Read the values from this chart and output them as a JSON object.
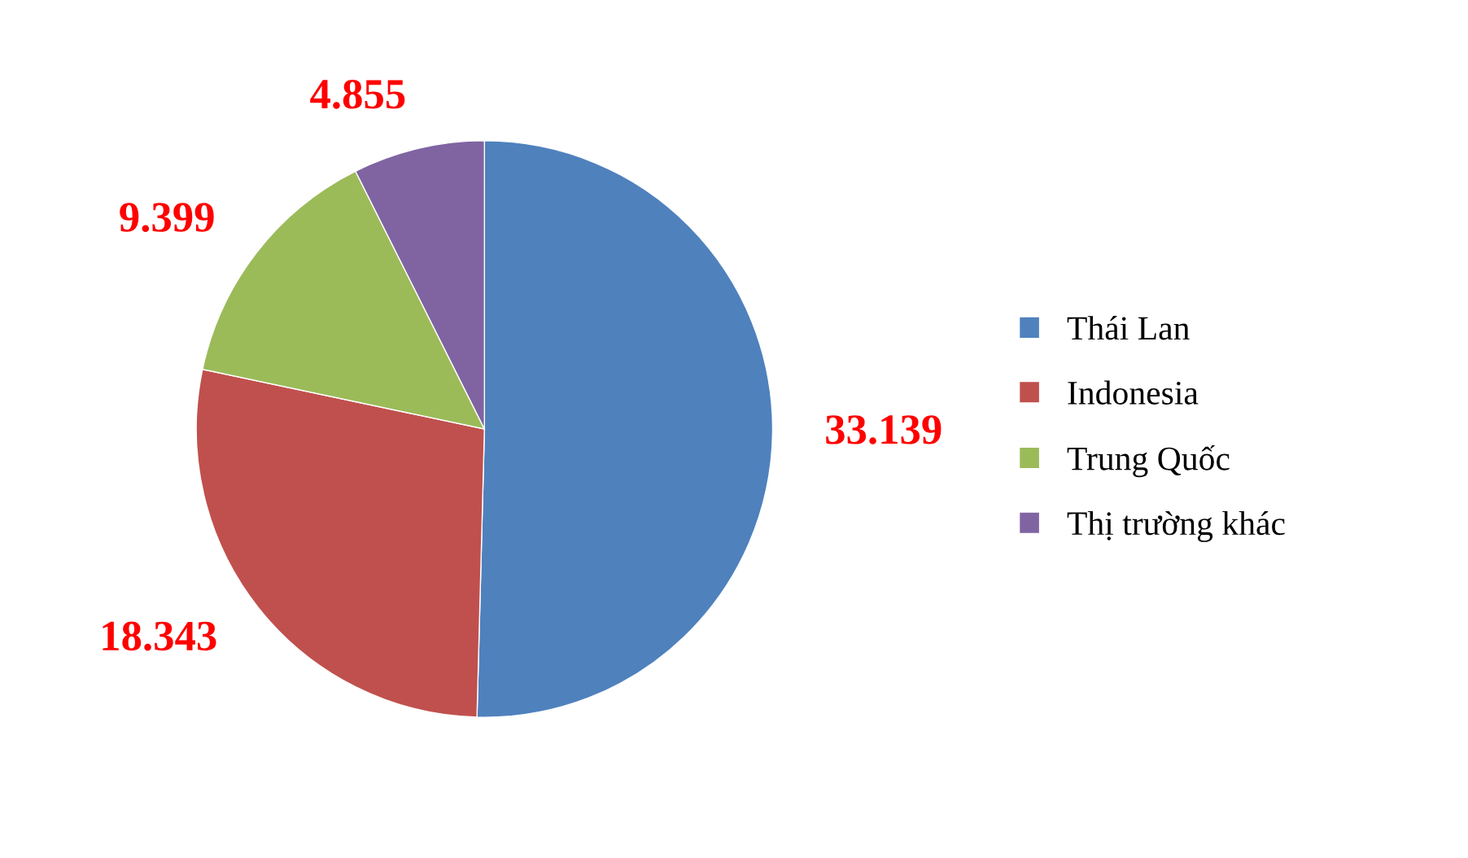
{
  "chart_data": {
    "type": "pie",
    "categories": [
      "Thái Lan",
      "Indonesia",
      "Trung Quốc",
      "Thị trường khác"
    ],
    "values": [
      33139,
      18343,
      9399,
      4855
    ],
    "value_labels": [
      "33.139",
      "18.343",
      "9.399",
      "4.855"
    ],
    "colors": [
      "#4f81bd",
      "#c0504d",
      "#9bbb59",
      "#8064a2"
    ],
    "legend": "right"
  }
}
